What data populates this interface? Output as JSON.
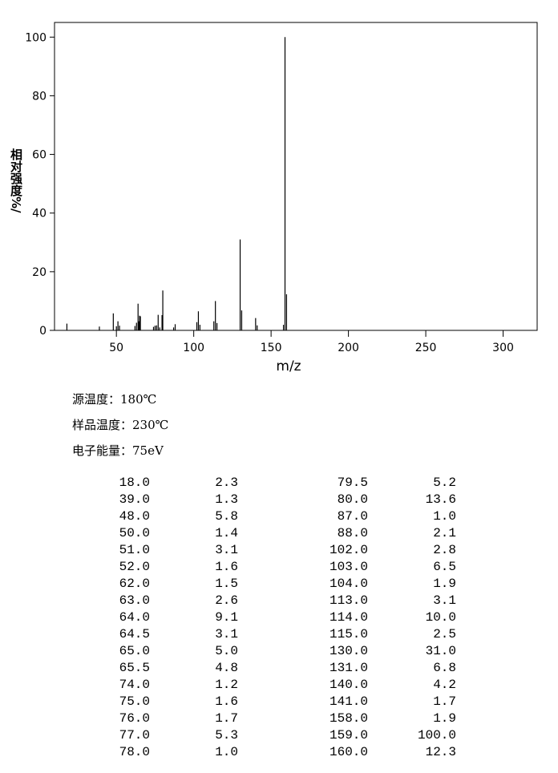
{
  "chart_data": {
    "type": "bar",
    "ylabel": "相对强度%/",
    "xlabel": "m/z",
    "x": [
      18,
      39,
      48,
      50,
      51,
      52,
      62,
      63,
      64,
      64.5,
      65,
      65.5,
      74,
      75,
      76,
      77,
      78,
      79.5,
      80,
      87,
      88,
      102,
      103,
      104,
      113,
      114,
      115,
      130,
      131,
      140,
      141,
      158,
      159,
      160
    ],
    "x_labels": [
      "18.0",
      "39.0",
      "48.0",
      "50.0",
      "51.0",
      "52.0",
      "62.0",
      "63.0",
      "64.0",
      "64.5",
      "65.0",
      "65.5",
      "74.0",
      "75.0",
      "76.0",
      "77.0",
      "78.0",
      "79.5",
      "80.0",
      "87.0",
      "88.0",
      "102.0",
      "103.0",
      "104.0",
      "113.0",
      "114.0",
      "115.0",
      "130.0",
      "131.0",
      "140.0",
      "141.0",
      "158.0",
      "159.0",
      "160.0"
    ],
    "values": [
      2.3,
      1.3,
      5.8,
      1.4,
      3.1,
      1.6,
      1.5,
      2.6,
      9.1,
      3.1,
      5,
      4.8,
      1.2,
      1.6,
      1.7,
      5.3,
      1,
      5.2,
      13.6,
      1,
      2.1,
      2.8,
      6.5,
      1.9,
      3.1,
      10,
      2.5,
      31,
      6.8,
      4.2,
      1.7,
      1.9,
      100,
      12.3
    ],
    "value_labels": [
      "2.3",
      "1.3",
      "5.8",
      "1.4",
      "3.1",
      "1.6",
      "1.5",
      "2.6",
      "9.1",
      "3.1",
      "5.0",
      "4.8",
      "1.2",
      "1.6",
      "1.7",
      "5.3",
      "1.0",
      "5.2",
      "13.6",
      "1.0",
      "2.1",
      "2.8",
      "6.5",
      "1.9",
      "3.1",
      "10.0",
      "2.5",
      "31.0",
      "6.8",
      "4.2",
      "1.7",
      "1.9",
      "100.0",
      "12.3"
    ],
    "color": "#000000",
    "xlim": [
      10,
      322
    ],
    "xticks": [
      50,
      100,
      150,
      200,
      250,
      300
    ],
    "ylim": [
      0,
      105
    ],
    "yticks": [
      0,
      20,
      40,
      60,
      80,
      100
    ]
  },
  "conditions": [
    "源温度：180℃",
    "样品温度：230℃",
    "电子能量：75eV"
  ]
}
